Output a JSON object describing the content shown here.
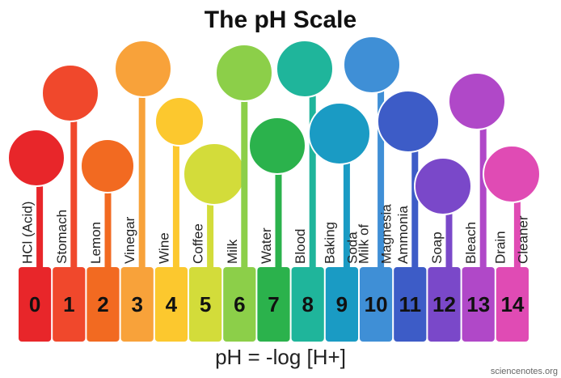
{
  "title": "The pH Scale",
  "scale": [
    {
      "ph": "0",
      "label": [
        "HCl (Acid)"
      ],
      "color": "#e8262a"
    },
    {
      "ph": "1",
      "label": [
        "Stomach"
      ],
      "color": "#f0482c"
    },
    {
      "ph": "2",
      "label": [
        "Lemon"
      ],
      "color": "#f26a21"
    },
    {
      "ph": "3",
      "label": [
        "Vinegar"
      ],
      "color": "#f8a23a"
    },
    {
      "ph": "4",
      "label": [
        "Wine"
      ],
      "color": "#fcc82e"
    },
    {
      "ph": "5",
      "label": [
        "Coffee"
      ],
      "color": "#d3dc3a"
    },
    {
      "ph": "6",
      "label": [
        "Milk"
      ],
      "color": "#8ccf49"
    },
    {
      "ph": "7",
      "label": [
        "Water"
      ],
      "color": "#2bb24c"
    },
    {
      "ph": "8",
      "label": [
        "Blood"
      ],
      "color": "#1fb59b"
    },
    {
      "ph": "9",
      "label": [
        "Baking",
        "Soda"
      ],
      "color": "#1a9bc4"
    },
    {
      "ph": "10",
      "label": [
        "Milk of",
        "Magnesia"
      ],
      "color": "#3f8fd6"
    },
    {
      "ph": "11",
      "label": [
        "Ammonia"
      ],
      "color": "#3d5cc7"
    },
    {
      "ph": "12",
      "label": [
        "Soap"
      ],
      "color": "#7a48c9"
    },
    {
      "ph": "13",
      "label": [
        "Bleach"
      ],
      "color": "#b048c8"
    },
    {
      "ph": "14",
      "label": [
        "Drain",
        "Cleaner"
      ],
      "color": "#e04bb4"
    }
  ],
  "formula": "pH = -log [H+]",
  "credit": "sciencenotes.org"
}
